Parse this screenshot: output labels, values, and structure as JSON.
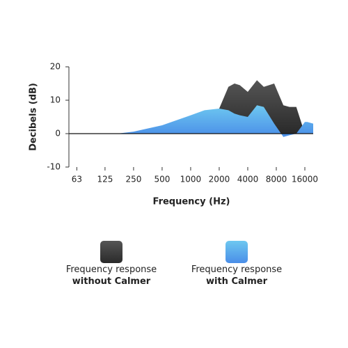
{
  "chart_data": {
    "type": "area",
    "y_label": "Decibels (dB)",
    "x_label": "Frequency (Hz)",
    "x": [
      52,
      125,
      180,
      250,
      500,
      1000,
      1400,
      2000,
      2500,
      2900,
      3300,
      4000,
      5000,
      5900,
      7600,
      9500,
      11000,
      13000,
      16000,
      17000,
      19600
    ],
    "series": [
      {
        "name": "Frequency response without Calmer",
        "color": "#3a3a3a",
        "values": [
          null,
          null,
          null,
          null,
          null,
          null,
          null,
          7.5,
          14,
          15,
          14.5,
          12.5,
          16,
          14,
          15,
          8.5,
          8,
          8,
          0,
          null,
          null
        ]
      },
      {
        "name": "Frequency response with Calmer",
        "color": "#4a9be8",
        "values": [
          0,
          0,
          0.1,
          0.6,
          2.5,
          5.5,
          7,
          7.5,
          7,
          6,
          5.5,
          5,
          8.5,
          8,
          3,
          -1,
          -0.5,
          0,
          3.5,
          3.5,
          3
        ]
      }
    ],
    "xscale": "log",
    "xlim": [
      52,
      19600
    ],
    "xticks": [
      63,
      125,
      250,
      500,
      1000,
      2000,
      4000,
      8000,
      16000
    ],
    "ylim": [
      -10,
      20
    ],
    "yticks": [
      -10,
      0,
      10,
      20
    ],
    "grid": false
  }
}
